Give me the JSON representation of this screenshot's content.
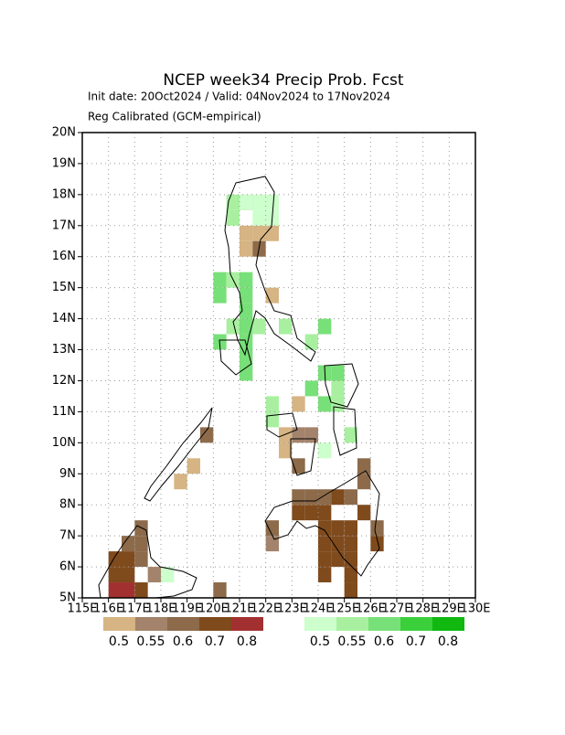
{
  "chart_data": {
    "type": "gridmap",
    "title": "NCEP week34 Precip Prob. Fcst",
    "subtitle": "Init date: 20Oct2024 / Valid: 04Nov2024 to 17Nov2024",
    "subtitle2": "Reg Calibrated (GCM-empirical)",
    "xlim": [
      115,
      130
    ],
    "ylim": [
      5,
      20
    ],
    "grid": true,
    "xticks": [
      {
        "value": 115,
        "label": "115E"
      },
      {
        "value": 116,
        "label": "116E"
      },
      {
        "value": 117,
        "label": "117E"
      },
      {
        "value": 118,
        "label": "118E"
      },
      {
        "value": 119,
        "label": "119E"
      },
      {
        "value": 120,
        "label": "120E"
      },
      {
        "value": 121,
        "label": "121E"
      },
      {
        "value": 122,
        "label": "122E"
      },
      {
        "value": 123,
        "label": "123E"
      },
      {
        "value": 124,
        "label": "124E"
      },
      {
        "value": 125,
        "label": "125E"
      },
      {
        "value": 126,
        "label": "126E"
      },
      {
        "value": 127,
        "label": "127E"
      },
      {
        "value": 128,
        "label": "128E"
      },
      {
        "value": 129,
        "label": "129E"
      },
      {
        "value": 130,
        "label": "130E"
      }
    ],
    "yticks": [
      {
        "value": 5,
        "label": "5N"
      },
      {
        "value": 6,
        "label": "6N"
      },
      {
        "value": 7,
        "label": "7N"
      },
      {
        "value": 8,
        "label": "8N"
      },
      {
        "value": 9,
        "label": "9N"
      },
      {
        "value": 10,
        "label": "10N"
      },
      {
        "value": 11,
        "label": "11N"
      },
      {
        "value": 12,
        "label": "12N"
      },
      {
        "value": 13,
        "label": "13N"
      },
      {
        "value": 14,
        "label": "14N"
      },
      {
        "value": 15,
        "label": "15N"
      },
      {
        "value": 16,
        "label": "16N"
      },
      {
        "value": 17,
        "label": "17N"
      },
      {
        "value": 18,
        "label": "18N"
      },
      {
        "value": 19,
        "label": "19N"
      },
      {
        "value": 20,
        "label": "20N"
      }
    ],
    "below_colorbar": {
      "levels": [
        0.5,
        0.55,
        0.6,
        0.7,
        0.8
      ],
      "colors": [
        "#d6b483",
        "#a3836b",
        "#8c6a4a",
        "#7f4a1c",
        "#a33030"
      ]
    },
    "above_colorbar": {
      "levels": [
        0.5,
        0.55,
        0.6,
        0.7,
        0.8
      ],
      "colors": [
        "#ccffcc",
        "#a8f0a0",
        "#78e078",
        "#3ccf3c",
        "#10b810"
      ]
    },
    "above_cells": [
      [
        120.5,
        17.5,
        0.57
      ],
      [
        121,
        17.5,
        0.52
      ],
      [
        121.5,
        17.5,
        0.52
      ],
      [
        122,
        17.5,
        0.52
      ],
      [
        120.5,
        17,
        0.57
      ],
      [
        121.5,
        17,
        0.52
      ],
      [
        122,
        17,
        0.52
      ],
      [
        120,
        15,
        0.62
      ],
      [
        120.5,
        15,
        0.57
      ],
      [
        121,
        15,
        0.62
      ],
      [
        120,
        14.5,
        0.62
      ],
      [
        121,
        14.5,
        0.62
      ],
      [
        121,
        14,
        0.62
      ],
      [
        120.5,
        13.5,
        0.57
      ],
      [
        121,
        13.5,
        0.62
      ],
      [
        121.5,
        13.5,
        0.57
      ],
      [
        122.5,
        13.5,
        0.57
      ],
      [
        120,
        13,
        0.62
      ],
      [
        121,
        13,
        0.62
      ],
      [
        121,
        12.5,
        0.65
      ],
      [
        121,
        12,
        0.65
      ],
      [
        123.5,
        13,
        0.57
      ],
      [
        124,
        13.5,
        0.62
      ],
      [
        123.5,
        11.5,
        0.65
      ],
      [
        124,
        12,
        0.62
      ],
      [
        124.5,
        12,
        0.62
      ],
      [
        124.5,
        11.5,
        0.57
      ],
      [
        124,
        11,
        0.62
      ],
      [
        124.5,
        11,
        0.57
      ],
      [
        122,
        11,
        0.57
      ],
      [
        122,
        10.5,
        0.57
      ],
      [
        125,
        10,
        0.57
      ],
      [
        124,
        9.5,
        0.52
      ],
      [
        118,
        5.5,
        0.52
      ]
    ],
    "below_cells": [
      [
        121,
        17.5,
        0.52
      ],
      [
        121,
        16.5,
        0.52
      ],
      [
        121.5,
        16.5,
        0.52
      ],
      [
        122,
        16.5,
        0.52
      ],
      [
        121,
        16,
        0.52
      ],
      [
        121.5,
        16,
        0.62
      ],
      [
        122,
        14.5,
        0.52
      ],
      [
        119.5,
        10,
        0.62
      ],
      [
        119,
        9,
        0.52
      ],
      [
        118.5,
        8.5,
        0.52
      ],
      [
        117,
        7,
        0.62
      ],
      [
        116.5,
        6.5,
        0.62
      ],
      [
        117,
        6.5,
        0.62
      ],
      [
        117,
        6,
        0.62
      ],
      [
        116,
        6,
        0.7
      ],
      [
        116.5,
        6,
        0.7
      ],
      [
        116,
        5.5,
        0.7
      ],
      [
        116.5,
        5.5,
        0.7
      ],
      [
        117.5,
        5.5,
        0.57
      ],
      [
        116,
        5,
        0.8
      ],
      [
        116.5,
        5,
        0.8
      ],
      [
        117,
        5,
        0.7
      ],
      [
        120,
        5,
        0.62
      ],
      [
        122,
        7,
        0.62
      ],
      [
        122,
        6.5,
        0.57
      ],
      [
        123,
        8,
        0.62
      ],
      [
        123.5,
        8,
        0.62
      ],
      [
        124,
        8,
        0.62
      ],
      [
        124.5,
        8,
        0.7
      ],
      [
        125,
        8,
        0.62
      ],
      [
        125.5,
        8.5,
        0.62
      ],
      [
        125.5,
        9,
        0.62
      ],
      [
        123,
        7.5,
        0.7
      ],
      [
        123.5,
        7.5,
        0.7
      ],
      [
        124,
        7.5,
        0.7
      ],
      [
        124,
        7,
        0.7
      ],
      [
        124.5,
        7,
        0.7
      ],
      [
        125,
        7,
        0.7
      ],
      [
        125.5,
        7.5,
        0.7
      ],
      [
        124,
        6.5,
        0.7
      ],
      [
        124.5,
        6.5,
        0.7
      ],
      [
        125,
        6.5,
        0.7
      ],
      [
        124,
        6,
        0.7
      ],
      [
        124.5,
        6,
        0.7
      ],
      [
        125,
        6,
        0.7
      ],
      [
        124,
        5.5,
        0.7
      ],
      [
        125,
        5.5,
        0.7
      ],
      [
        126,
        6.5,
        0.7
      ],
      [
        126,
        7,
        0.62
      ],
      [
        125,
        5,
        0.7
      ],
      [
        123,
        9,
        0.62
      ],
      [
        123.5,
        10,
        0.57
      ],
      [
        122.5,
        9.5,
        0.52
      ],
      [
        123,
        10,
        0.57
      ],
      [
        123,
        11,
        0.52
      ],
      [
        122.5,
        10,
        0.52
      ]
    ]
  }
}
